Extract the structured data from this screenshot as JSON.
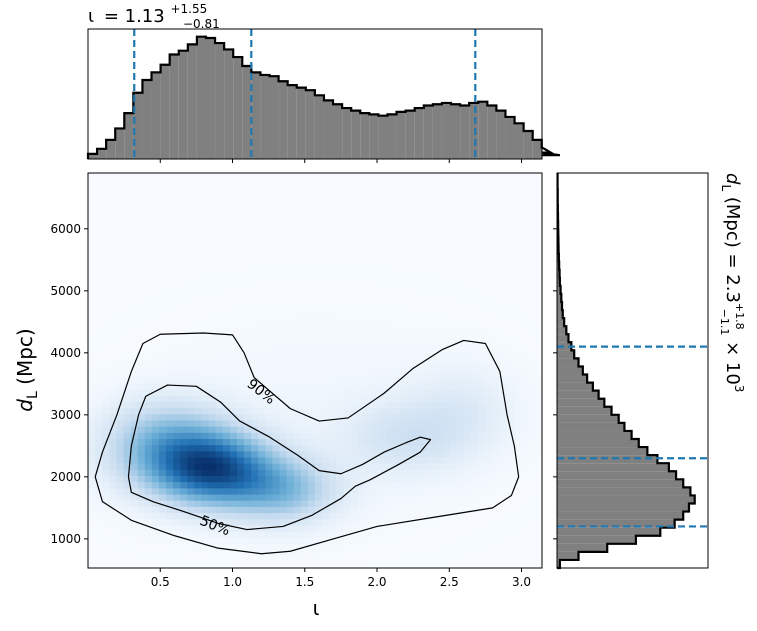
{
  "chart_data": [
    {
      "type": "histogram",
      "panel": "top-marginal",
      "title": {
        "symbol": "ι",
        "equals": "= 1.13",
        "sup": "+1.55",
        "sub": "−0.81"
      },
      "xlim": [
        0,
        3.1416
      ],
      "bin_width": 0.0628,
      "bin_heights": [
        0.04,
        0.08,
        0.15,
        0.24,
        0.36,
        0.52,
        0.62,
        0.68,
        0.74,
        0.82,
        0.85,
        0.9,
        0.96,
        0.95,
        0.91,
        0.86,
        0.8,
        0.73,
        0.68,
        0.66,
        0.65,
        0.61,
        0.58,
        0.56,
        0.54,
        0.5,
        0.46,
        0.43,
        0.4,
        0.38,
        0.36,
        0.35,
        0.34,
        0.35,
        0.37,
        0.38,
        0.4,
        0.42,
        0.43,
        0.44,
        0.43,
        0.42,
        0.44,
        0.45,
        0.42,
        0.38,
        0.33,
        0.28,
        0.22,
        0.15,
        0.09,
        0.05,
        0.03
      ],
      "quantile_lines": [
        0.32,
        1.13,
        2.68
      ],
      "fill_color": "#808080",
      "line_color": "#1f77b4"
    },
    {
      "type": "heatmap",
      "panel": "joint",
      "xlabel": "ι",
      "ylabel": {
        "symbol": "d",
        "sub": "L",
        "rest": " (Mpc)"
      },
      "xlim": [
        0,
        3.1416
      ],
      "ylim": [
        530,
        6900
      ],
      "x_ticks": [
        "0.5",
        "1.0",
        "1.5",
        "2.0",
        "2.5",
        "3.0"
      ],
      "y_ticks": [
        "1000",
        "2000",
        "3000",
        "4000",
        "5000",
        "6000"
      ],
      "colormap": [
        "#f7fbff",
        "#c6dbef",
        "#6baed6",
        "#2171b5",
        "#08306b"
      ],
      "density_components": [
        {
          "x": 0.88,
          "y": 2120,
          "sx": 0.28,
          "sy": 400,
          "w": 1.0
        },
        {
          "x": 0.55,
          "y": 2500,
          "sx": 0.3,
          "sy": 480,
          "w": 0.6
        },
        {
          "x": 1.35,
          "y": 1780,
          "sx": 0.26,
          "sy": 360,
          "w": 0.5
        },
        {
          "x": 2.2,
          "y": 2650,
          "sx": 0.3,
          "sy": 420,
          "w": 0.22
        },
        {
          "x": 2.6,
          "y": 3100,
          "sx": 0.25,
          "sy": 500,
          "w": 0.14
        },
        {
          "x": 1.6,
          "y": 2900,
          "sx": 0.8,
          "sy": 1100,
          "w": 0.05
        }
      ],
      "contours": [
        {
          "label": "90%",
          "label_at": [
            1.2,
            3380
          ],
          "label_rotation": 38,
          "points": [
            [
              0.05,
              2000
            ],
            [
              0.1,
              2400
            ],
            [
              0.2,
              3000
            ],
            [
              0.3,
              3700
            ],
            [
              0.38,
              4150
            ],
            [
              0.5,
              4300
            ],
            [
              0.8,
              4320
            ],
            [
              1.0,
              4290
            ],
            [
              1.08,
              4000
            ],
            [
              1.15,
              3600
            ],
            [
              1.25,
              3400
            ],
            [
              1.4,
              3100
            ],
            [
              1.6,
              2900
            ],
            [
              1.8,
              2950
            ],
            [
              2.05,
              3350
            ],
            [
              2.25,
              3750
            ],
            [
              2.45,
              4050
            ],
            [
              2.6,
              4200
            ],
            [
              2.75,
              4150
            ],
            [
              2.85,
              3700
            ],
            [
              2.9,
              3000
            ],
            [
              2.95,
              2500
            ],
            [
              2.98,
              2000
            ],
            [
              2.93,
              1700
            ],
            [
              2.8,
              1500
            ],
            [
              2.4,
              1350
            ],
            [
              2.0,
              1200
            ],
            [
              1.7,
              1000
            ],
            [
              1.4,
              800
            ],
            [
              1.2,
              760
            ],
            [
              0.9,
              850
            ],
            [
              0.6,
              1050
            ],
            [
              0.3,
              1300
            ],
            [
              0.1,
              1600
            ],
            [
              0.05,
              2000
            ]
          ]
        },
        {
          "label": "50%",
          "label_at": [
            0.88,
            1220
          ],
          "label_rotation": 22,
          "points": [
            [
              0.28,
              2000
            ],
            [
              0.3,
              2500
            ],
            [
              0.35,
              3000
            ],
            [
              0.4,
              3300
            ],
            [
              0.55,
              3480
            ],
            [
              0.75,
              3460
            ],
            [
              0.92,
              3200
            ],
            [
              1.05,
              2900
            ],
            [
              1.25,
              2650
            ],
            [
              1.45,
              2350
            ],
            [
              1.6,
              2100
            ],
            [
              1.75,
              2050
            ],
            [
              1.9,
              2200
            ],
            [
              2.05,
              2400
            ],
            [
              2.2,
              2550
            ],
            [
              2.3,
              2640
            ],
            [
              2.37,
              2600
            ],
            [
              2.3,
              2400
            ],
            [
              2.15,
              2200
            ],
            [
              1.95,
              1950
            ],
            [
              1.85,
              1850
            ],
            [
              1.75,
              1650
            ],
            [
              1.55,
              1380
            ],
            [
              1.35,
              1200
            ],
            [
              1.1,
              1150
            ],
            [
              0.9,
              1250
            ],
            [
              0.65,
              1450
            ],
            [
              0.45,
              1600
            ],
            [
              0.3,
              1750
            ],
            [
              0.28,
              2000
            ]
          ]
        }
      ]
    },
    {
      "type": "histogram",
      "panel": "right-marginal",
      "orientation": "horizontal",
      "side_label": {
        "symbol": "d",
        "sub": "L",
        "text": " (Mpc) = 2.3",
        "sup": "+1.8",
        "sub2": "−1.1",
        "tail": " × 10",
        "exp": "3"
      },
      "ylim": [
        530,
        6900
      ],
      "bin_width": 130,
      "bin_widths_rel": [
        0.02,
        0.15,
        0.35,
        0.55,
        0.72,
        0.82,
        0.88,
        0.92,
        0.96,
        0.93,
        0.88,
        0.83,
        0.78,
        0.7,
        0.63,
        0.57,
        0.52,
        0.47,
        0.43,
        0.38,
        0.33,
        0.29,
        0.25,
        0.21,
        0.18,
        0.15,
        0.12,
        0.1,
        0.08,
        0.065,
        0.05,
        0.04,
        0.035,
        0.03,
        0.025,
        0.02,
        0.018,
        0.015,
        0.013,
        0.011,
        0.01,
        0.009,
        0.008,
        0.007,
        0.006,
        0.005,
        0.005,
        0.004,
        0.004
      ],
      "quantile_lines": [
        1200,
        2300,
        4100
      ],
      "fill_color": "#808080",
      "line_color": "#1f77b4"
    }
  ]
}
